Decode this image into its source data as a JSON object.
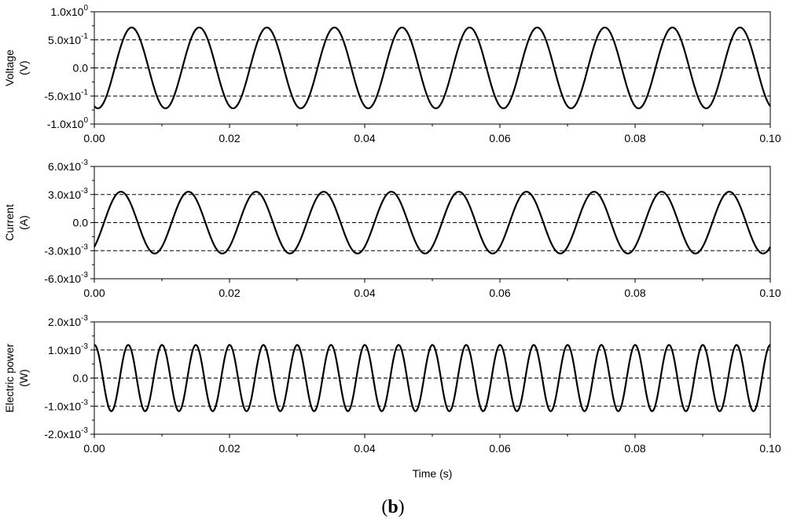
{
  "figure": {
    "tag_open": "(",
    "tag_letter": "b",
    "tag_close": ")"
  },
  "chart_data": [
    {
      "type": "line",
      "title": "",
      "xlabel": "",
      "ylabel_lines": [
        "Voltage",
        "(V)"
      ],
      "xlim": [
        0,
        0.1
      ],
      "ylim": [
        -1.0,
        1.0
      ],
      "x_ticks": [
        "0.00",
        "0.02",
        "0.04",
        "0.06",
        "0.08",
        "0.10"
      ],
      "y_ticks": [
        {
          "value": 1.0,
          "mant": "1.0x10",
          "exp": "0"
        },
        {
          "value": 0.5,
          "mant": "5.0x10",
          "exp": "-1"
        },
        {
          "value": 0.0,
          "mant": "0.0",
          "exp": ""
        },
        {
          "value": -0.5,
          "mant": "-5.0x10",
          "exp": "-1"
        },
        {
          "value": -1.0,
          "mant": "-1.0x10",
          "exp": "0"
        }
      ],
      "dashed_gridlines": [
        0.5,
        0.0,
        -0.5
      ],
      "series": [
        {
          "amplitude": 0.72,
          "frequency_hz": 100,
          "phase_rad": -1.9,
          "color": "#000000"
        }
      ]
    },
    {
      "type": "line",
      "title": "",
      "xlabel": "",
      "ylabel_lines": [
        "Current",
        "(A)"
      ],
      "xlim": [
        0,
        0.1
      ],
      "ylim": [
        -0.006,
        0.006
      ],
      "x_ticks": [
        "0.00",
        "0.02",
        "0.04",
        "0.06",
        "0.08",
        "0.10"
      ],
      "y_ticks": [
        {
          "value": 0.006,
          "mant": "6.0x10",
          "exp": "-3"
        },
        {
          "value": 0.003,
          "mant": "3.0x10",
          "exp": "-3"
        },
        {
          "value": 0.0,
          "mant": "0.0",
          "exp": ""
        },
        {
          "value": -0.003,
          "mant": "-3.0x10",
          "exp": "-3"
        },
        {
          "value": -0.006,
          "mant": "-6.0x10",
          "exp": "-3"
        }
      ],
      "dashed_gridlines": [
        0.003,
        0.0,
        -0.003
      ],
      "series": [
        {
          "amplitude": 0.0033,
          "frequency_hz": 100,
          "phase_rad": -0.9,
          "color": "#000000"
        }
      ]
    },
    {
      "type": "line",
      "title": "",
      "xlabel": "Time (s)",
      "ylabel_lines": [
        "Electric power",
        "(W)"
      ],
      "xlim": [
        0,
        0.1
      ],
      "ylim": [
        -0.002,
        0.002
      ],
      "x_ticks": [
        "0.00",
        "0.02",
        "0.04",
        "0.06",
        "0.08",
        "0.10"
      ],
      "y_ticks": [
        {
          "value": 0.002,
          "mant": "2.0x10",
          "exp": "-3"
        },
        {
          "value": 0.001,
          "mant": "1.0x10",
          "exp": "-3"
        },
        {
          "value": 0.0,
          "mant": "0.0",
          "exp": ""
        },
        {
          "value": -0.001,
          "mant": "-1.0x10",
          "exp": "-3"
        },
        {
          "value": -0.002,
          "mant": "-2.0x10",
          "exp": "-3"
        }
      ],
      "dashed_gridlines": [
        0.001,
        0.0,
        -0.001
      ],
      "series": [
        {
          "amplitude": 0.00118,
          "frequency_hz": 200,
          "phase_rad": 1.55,
          "color": "#000000"
        }
      ]
    }
  ]
}
